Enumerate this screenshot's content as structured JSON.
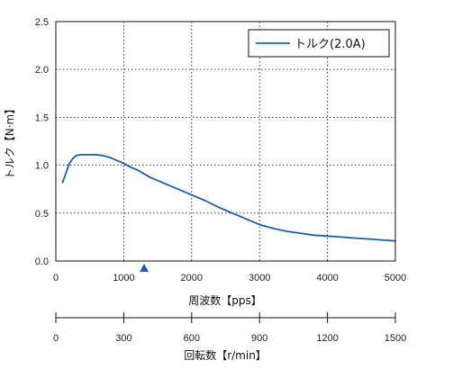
{
  "chart_data": {
    "type": "line",
    "x_unit_label": "周波数【pps】",
    "y_unit_label": "トルク【N·m】",
    "rpm_axis_label": "回転数【r/min】",
    "xlim": [
      0,
      5000
    ],
    "ylim": [
      0,
      2.5
    ],
    "rpm_lim": [
      0,
      1500
    ],
    "grid": true,
    "grid_style": "dotted",
    "legend_position": "top-right",
    "x_ticks": [
      "0",
      "1000",
      "2000",
      "3000",
      "4000",
      "5000"
    ],
    "y_ticks": [
      "0.0",
      "0.5",
      "1.0",
      "1.5",
      "2.0",
      "2.5"
    ],
    "rpm_ticks": [
      "0",
      "300",
      "600",
      "900",
      "1200",
      "1500"
    ],
    "marker": {
      "shape": "triangle",
      "x": 1300,
      "color": "#1a5fb4"
    },
    "series": [
      {
        "name": "トルク(2.0A)",
        "color": "#1a5fb4",
        "x": [
          100,
          150,
          200,
          250,
          300,
          350,
          400,
          500,
          600,
          700,
          800,
          900,
          1000,
          1100,
          1200,
          1300,
          1400,
          1500,
          1600,
          1800,
          2000,
          2200,
          2400,
          2600,
          2800,
          3000,
          3200,
          3400,
          3600,
          3800,
          4000,
          4200,
          4400,
          4600,
          4800,
          5000
        ],
        "y": [
          0.82,
          0.92,
          1.02,
          1.07,
          1.1,
          1.11,
          1.11,
          1.11,
          1.11,
          1.1,
          1.08,
          1.05,
          1.02,
          0.98,
          0.95,
          0.91,
          0.87,
          0.84,
          0.81,
          0.75,
          0.69,
          0.63,
          0.56,
          0.5,
          0.44,
          0.38,
          0.34,
          0.31,
          0.29,
          0.27,
          0.26,
          0.25,
          0.24,
          0.23,
          0.22,
          0.21
        ]
      }
    ]
  }
}
